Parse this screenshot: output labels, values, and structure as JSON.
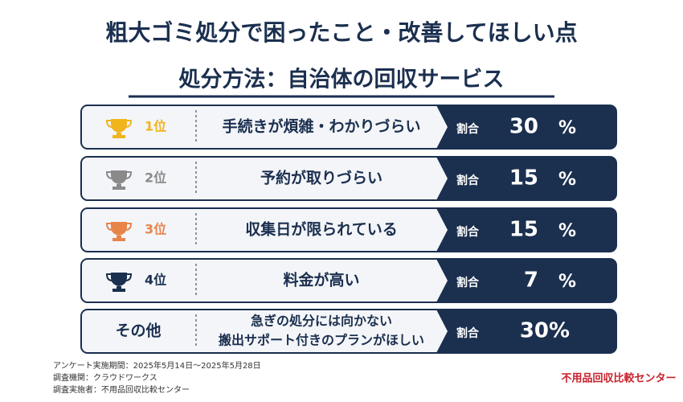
{
  "header": {
    "title": "粗大ゴミ処分で困ったこと・改善してほしい点",
    "subtitle": "処分方法：自治体の回収サービス"
  },
  "rows": [
    {
      "rank": "1位",
      "item": [
        "手続きが煩雑・わかりづらい"
      ],
      "label": "割合",
      "value": "30",
      "unit": "%",
      "color": "#f0b41c"
    },
    {
      "rank": "2位",
      "item": [
        "予約が取りづらい"
      ],
      "label": "割合",
      "value": "15",
      "unit": "%",
      "color": "#8a8a8a"
    },
    {
      "rank": "3位",
      "item": [
        "収集日が限られている"
      ],
      "label": "割合",
      "value": "15",
      "unit": "%",
      "color": "#e8844a"
    },
    {
      "rank": "4位",
      "item": [
        "料金が高い"
      ],
      "label": "割合",
      "value": "7",
      "unit": "%",
      "color": "#1b2f4f"
    },
    {
      "rank": "その他",
      "item": [
        "急ぎの処分には向かない",
        "搬出サポート付きのプランがほしい"
      ],
      "label": "割合",
      "value": "30",
      "unit": "%",
      "color": "#1b2f4f"
    }
  ],
  "footer": {
    "notes": [
      "アンケート実施期間：2025年5月14日〜2025年5月28日",
      "調査機関：クラウドワークス",
      "調査実施者：不用品回収比較センター"
    ],
    "logo": "不用品回収比較センター"
  }
}
